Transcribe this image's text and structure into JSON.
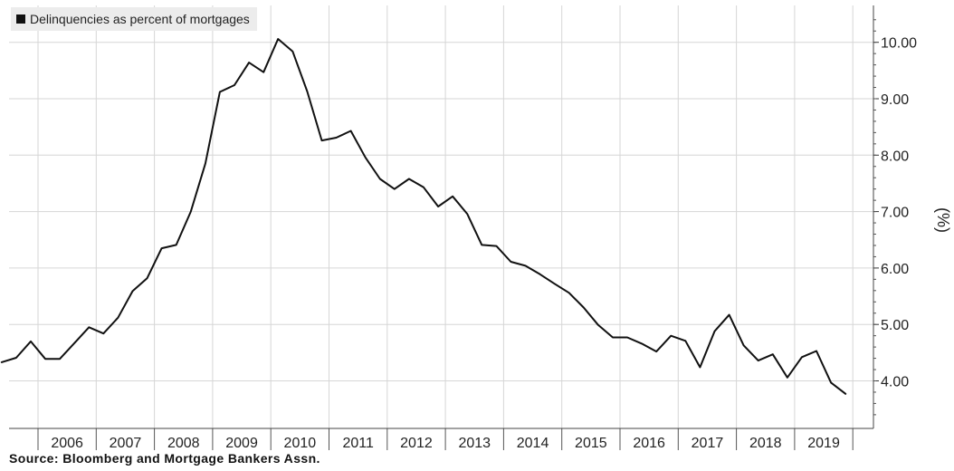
{
  "chart_data": {
    "type": "line",
    "title": "",
    "legend": [
      "Delinquencies as percent of mortgages"
    ],
    "legend_position": "top-left",
    "ylabel": "(%)",
    "xlabel": "",
    "ylim": [
      3.2,
      10.6
    ],
    "y_axis_side": "right",
    "yticks": [
      "4.00",
      "5.00",
      "6.00",
      "7.00",
      "8.00",
      "9.00",
      "10.00"
    ],
    "xticks": [
      "2006",
      "2007",
      "2008",
      "2009",
      "2010",
      "2011",
      "2012",
      "2013",
      "2014",
      "2015",
      "2016",
      "2017",
      "2018",
      "2019"
    ],
    "grid": true,
    "color": "#111111",
    "series": [
      {
        "name": "Delinquencies as percent of mortgages",
        "x": [
          "2005 Q2",
          "2005 Q3",
          "2005 Q4",
          "2006 Q1",
          "2006 Q2",
          "2006 Q3",
          "2006 Q4",
          "2007 Q1",
          "2007 Q2",
          "2007 Q3",
          "2007 Q4",
          "2008 Q1",
          "2008 Q2",
          "2008 Q3",
          "2008 Q4",
          "2009 Q1",
          "2009 Q2",
          "2009 Q3",
          "2009 Q4",
          "2010 Q1",
          "2010 Q2",
          "2010 Q3",
          "2010 Q4",
          "2011 Q1",
          "2011 Q2",
          "2011 Q3",
          "2011 Q4",
          "2012 Q1",
          "2012 Q2",
          "2012 Q3",
          "2012 Q4",
          "2013 Q1",
          "2013 Q2",
          "2013 Q3",
          "2013 Q4",
          "2014 Q1",
          "2014 Q2",
          "2014 Q3",
          "2014 Q4",
          "2015 Q1",
          "2015 Q2",
          "2015 Q3",
          "2015 Q4",
          "2016 Q1",
          "2016 Q2",
          "2016 Q3",
          "2016 Q4",
          "2017 Q1",
          "2017 Q2",
          "2017 Q3",
          "2017 Q4",
          "2018 Q1",
          "2018 Q2",
          "2018 Q3",
          "2018 Q4",
          "2019 Q1",
          "2019 Q2",
          "2019 Q3",
          "2019 Q4"
        ],
        "values": [
          4.33,
          4.41,
          4.7,
          4.39,
          4.39,
          4.67,
          4.95,
          4.84,
          5.12,
          5.59,
          5.82,
          6.35,
          6.41,
          7.0,
          7.85,
          9.12,
          9.24,
          9.64,
          9.47,
          10.06,
          9.84,
          9.13,
          8.26,
          8.31,
          8.43,
          7.96,
          7.58,
          7.4,
          7.58,
          7.43,
          7.09,
          7.27,
          6.96,
          6.41,
          6.39,
          6.11,
          6.04,
          5.89,
          5.72,
          5.56,
          5.3,
          4.99,
          4.77,
          4.77,
          4.66,
          4.52,
          4.8,
          4.71,
          4.24,
          4.88,
          5.17,
          4.63,
          4.36,
          4.47,
          4.06,
          4.42,
          4.53,
          3.97,
          3.77
        ]
      }
    ]
  },
  "source": "Source:  Bloomberg and Mortgage Bankers Assn."
}
